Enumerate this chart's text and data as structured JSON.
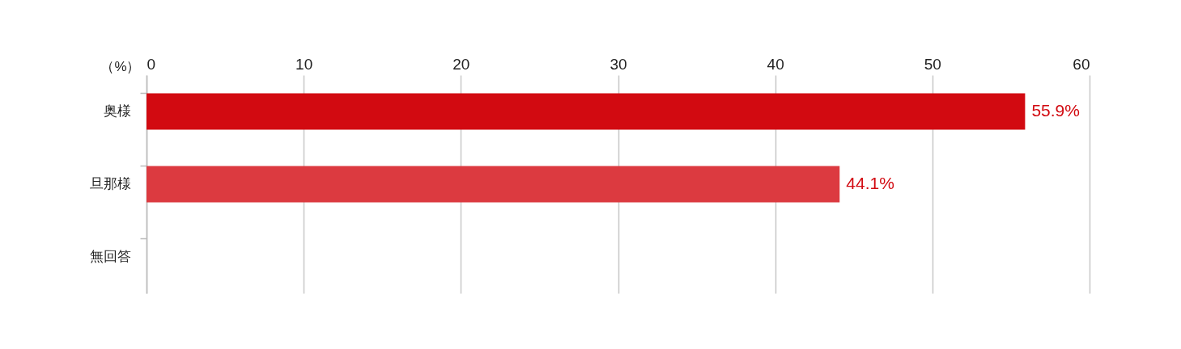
{
  "chart_data": {
    "type": "bar",
    "orientation": "horizontal",
    "xlabel": "（%）",
    "categories": [
      "奥様",
      "旦那様",
      "無回答"
    ],
    "values": [
      55.9,
      44.1,
      null
    ],
    "colors": [
      "#d20a11",
      "#dc3a40",
      null
    ],
    "value_labels": [
      "55.9%",
      "44.1%",
      null
    ],
    "xlim": [
      0,
      60
    ],
    "xticks": [
      0,
      10,
      20,
      30,
      40,
      50,
      60
    ],
    "grid": "x"
  }
}
